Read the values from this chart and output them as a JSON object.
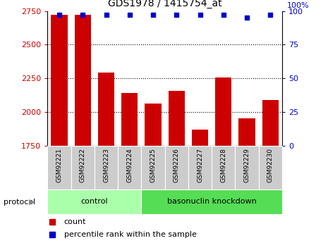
{
  "title": "GDS1978 / 1415754_at",
  "samples": [
    "GSM92221",
    "GSM92222",
    "GSM92223",
    "GSM92224",
    "GSM92225",
    "GSM92226",
    "GSM92227",
    "GSM92228",
    "GSM92229",
    "GSM92230"
  ],
  "counts": [
    2720,
    2720,
    2295,
    2140,
    2065,
    2155,
    1870,
    2255,
    1955,
    2090
  ],
  "percentile_ranks": [
    97,
    97,
    97,
    97,
    97,
    97,
    97,
    97,
    95,
    97
  ],
  "groups": [
    {
      "label": "control",
      "start": 0,
      "end": 3,
      "color": "#aaffaa"
    },
    {
      "label": "basonuclin knockdown",
      "start": 4,
      "end": 9,
      "color": "#55dd55"
    }
  ],
  "ylim_left": [
    1750,
    2750
  ],
  "ylim_right": [
    0,
    100
  ],
  "yticks_left": [
    1750,
    2000,
    2250,
    2500,
    2750
  ],
  "yticks_right": [
    0,
    25,
    50,
    75,
    100
  ],
  "bar_color": "#cc0000",
  "dot_color": "#0000cc",
  "tick_label_bg": "#cccccc",
  "protocol_label": "protocol",
  "legend_count_label": "count",
  "legend_percentile_label": "percentile rank within the sample",
  "fig_width": 4.65,
  "fig_height": 3.45,
  "dpi": 100
}
